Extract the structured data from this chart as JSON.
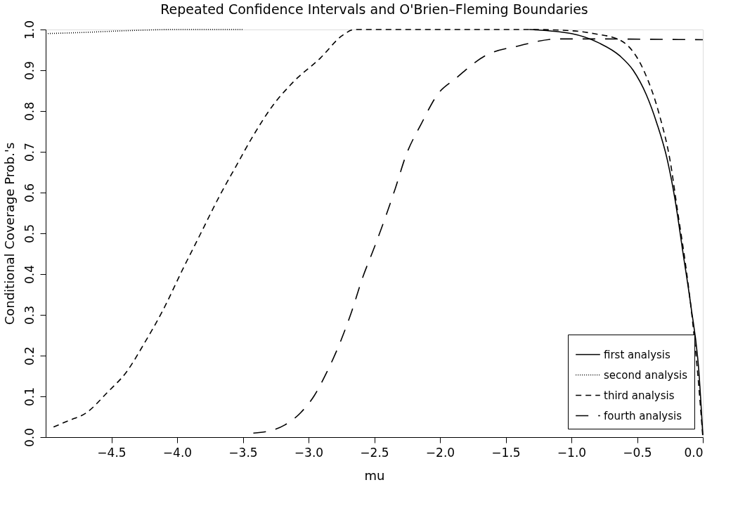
{
  "chart_data": {
    "type": "line",
    "title": "Repeated Confidence Intervals and O'Brien–Fleming Boundaries",
    "xlabel": "mu",
    "ylabel": "Conditional Coverage Prob.'s",
    "xlim": [
      -5.0,
      0.0
    ],
    "xticks": [
      {
        "value": -4.5,
        "label": "−4.5"
      },
      {
        "value": -4.0,
        "label": "−4.0"
      },
      {
        "value": -3.5,
        "label": "−3.5"
      },
      {
        "value": -3.0,
        "label": "−3.0"
      },
      {
        "value": -2.5,
        "label": "−2.5"
      },
      {
        "value": -2.0,
        "label": "−2.0"
      },
      {
        "value": -1.5,
        "label": "−1.5"
      },
      {
        "value": -1.0,
        "label": "−1.0"
      },
      {
        "value": -0.5,
        "label": "−0.5"
      },
      {
        "value": 0.0,
        "label": "0.0"
      }
    ],
    "ylim": [
      0.0,
      1.0
    ],
    "yticks": [
      {
        "value": 0.0,
        "label": "0.0"
      },
      0.1,
      0.2,
      0.3,
      0.4,
      0.5,
      0.6,
      0.7,
      0.8,
      0.9,
      {
        "value": 1.0,
        "label": "1.0"
      }
    ],
    "grid": false,
    "legend": "bottom right",
    "marker": "none",
    "series": [
      {
        "name": "first analysis",
        "color": "#000000",
        "line_style": "solid",
        "x": [
          -1.32,
          -1.0,
          -0.79,
          -0.63,
          -0.53,
          -0.43,
          -0.35,
          -0.27,
          -0.21,
          -0.15,
          -0.09,
          -0.03,
          0.0
        ],
        "values": [
          1.0,
          0.99,
          0.967,
          0.935,
          0.9,
          0.84,
          0.77,
          0.68,
          0.58,
          0.45,
          0.32,
          0.16,
          0.005
        ]
      },
      {
        "name": "second analysis",
        "color": "#000000",
        "line_style": "dotted",
        "x": [
          -5.0,
          -4.7,
          -4.4,
          -4.0,
          -3.5
        ],
        "values": [
          0.99,
          0.993,
          0.997,
          1.0,
          1.0
        ]
      },
      {
        "name": "third analysis",
        "color": "#000000",
        "line_style": "dashed",
        "x": [
          -4.94,
          -4.83,
          -4.69,
          -4.53,
          -4.385,
          -4.25,
          -4.11,
          -3.96,
          -3.82,
          -3.68,
          -3.56,
          -3.42,
          -3.28,
          -3.12,
          -2.91,
          -2.74,
          -2.65,
          -1.3,
          -1.0,
          -0.83,
          -0.63,
          -0.45,
          -0.33,
          -0.25,
          -0.19,
          -0.13,
          -0.08,
          -0.04,
          0.0
        ],
        "values": [
          0.025,
          0.04,
          0.06,
          0.11,
          0.16,
          0.23,
          0.31,
          0.41,
          0.5,
          0.59,
          0.66,
          0.74,
          0.81,
          0.87,
          0.93,
          0.986,
          1.0,
          1.0,
          0.997,
          0.99,
          0.974,
          0.9,
          0.79,
          0.68,
          0.55,
          0.42,
          0.29,
          0.16,
          0.0
        ]
      },
      {
        "name": "fourth analysis",
        "color": "#000000",
        "line_style": "longdash",
        "x": [
          -3.42,
          -3.3,
          -3.18,
          -3.06,
          -2.96,
          -2.86,
          -2.75,
          -2.67,
          -2.59,
          -2.5,
          -2.42,
          -2.34,
          -2.26,
          -2.14,
          -2.02,
          -1.88,
          -1.66,
          -1.4,
          -1.1,
          -0.8,
          -0.4,
          0.0
        ],
        "values": [
          0.01,
          0.015,
          0.03,
          0.06,
          0.1,
          0.16,
          0.24,
          0.31,
          0.39,
          0.465,
          0.535,
          0.61,
          0.69,
          0.77,
          0.84,
          0.88,
          0.935,
          0.96,
          0.977,
          0.977,
          0.976,
          0.975
        ]
      }
    ]
  }
}
